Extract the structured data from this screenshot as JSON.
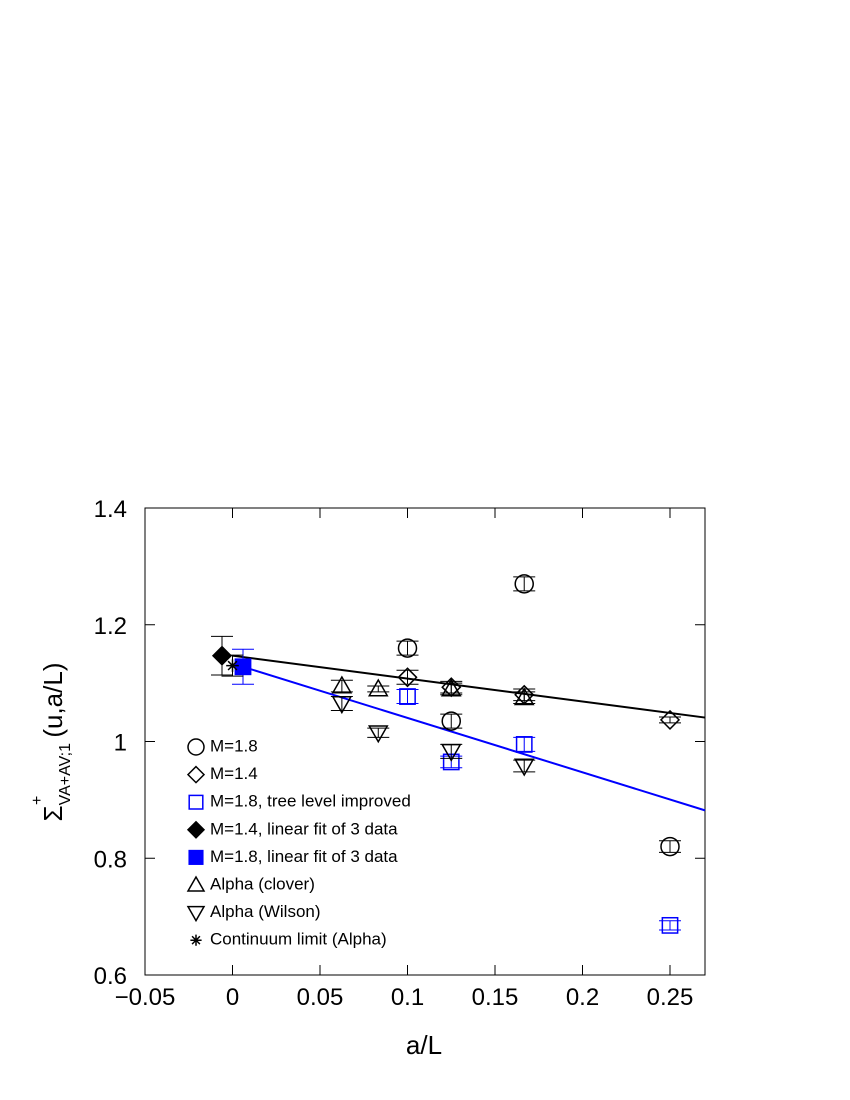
{
  "chart_data": {
    "type": "scatter",
    "x_label": "a/L",
    "y_label": {
      "symbol": "Σ",
      "superscript": "+",
      "subscript": "VA+AV;1",
      "argument": "(u,a/L)"
    },
    "xlim": [
      -0.05,
      0.27
    ],
    "ylim": [
      0.6,
      1.4
    ],
    "xticks": [
      {
        "value": -0.05,
        "label": "−0.05"
      },
      0,
      0.05,
      0.1,
      0.15,
      0.2,
      0.25
    ],
    "yticks": [
      0.6,
      0.8,
      1,
      1.2,
      1.4
    ],
    "legend": "lower-left",
    "series": [
      {
        "name": "M=1.8",
        "marker": "circle",
        "color": "#000000",
        "x": [
          0.1,
          0.125,
          0.1667,
          0.25
        ],
        "values": [
          1.16,
          1.035,
          1.27,
          0.82
        ],
        "errors": [
          0.012,
          0.012,
          0.012,
          0.01
        ]
      },
      {
        "name": "M=1.4",
        "marker": "diamond",
        "color": "#000000",
        "x": [
          0.1,
          0.125,
          0.1667,
          0.25
        ],
        "values": [
          1.11,
          1.093,
          1.08,
          1.037
        ],
        "errors": [
          0.012,
          0.01,
          0.01,
          0.005
        ]
      },
      {
        "name": "M=1.8, tree level improved",
        "marker": "square",
        "color": "#0000ff",
        "x": [
          0.1,
          0.125,
          0.1667,
          0.25
        ],
        "values": [
          1.077,
          0.965,
          0.995,
          0.685
        ],
        "errors": [
          0.012,
          0.01,
          0.012,
          0.008
        ]
      },
      {
        "name": "M=1.4, linear fit of 3 data",
        "marker": "diamond-filled",
        "color": "#000000",
        "x": [
          -0.006
        ],
        "values": [
          1.147
        ],
        "errors": [
          0.033
        ]
      },
      {
        "name": "M=1.8, linear fit of 3 data",
        "marker": "square-filled",
        "color": "#0000ff",
        "x": [
          0.006
        ],
        "values": [
          1.128
        ],
        "errors": [
          0.03
        ]
      },
      {
        "name": "Alpha (clover)",
        "marker": "triangle-up",
        "color": "#000000",
        "x": [
          0.0625,
          0.0833,
          0.125,
          0.1667
        ],
        "values": [
          1.095,
          1.09,
          1.09,
          1.075
        ],
        "errors": [
          0.01,
          0.005,
          0.01,
          0.01
        ]
      },
      {
        "name": "Alpha (Wilson)",
        "marker": "triangle-down",
        "color": "#000000",
        "x": [
          0.0625,
          0.0833,
          0.125,
          0.1667
        ],
        "values": [
          1.065,
          1.015,
          0.983,
          0.958
        ],
        "errors": [
          0.012,
          0.008,
          0.012,
          0.01
        ]
      },
      {
        "name": "Continuum limit (Alpha)",
        "marker": "asterisk",
        "color": "#000000",
        "x": [
          0
        ],
        "values": [
          1.13
        ],
        "errors": [
          0.018
        ]
      }
    ],
    "fit_lines": [
      {
        "color": "#000000",
        "x": [
          0,
          0.27
        ],
        "values": [
          1.147,
          1.041
        ]
      },
      {
        "color": "#0000ff",
        "x": [
          0.006,
          0.27
        ],
        "values": [
          1.128,
          0.882
        ]
      }
    ]
  }
}
